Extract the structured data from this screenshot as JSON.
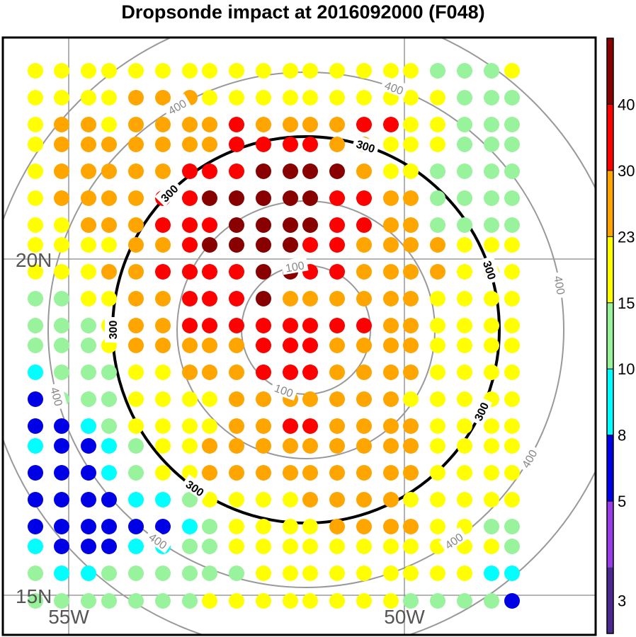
{
  "chart_data": {
    "type": "scatter",
    "title": "Dropsonde impact at 2016092000 (F048)",
    "x_axis": {
      "labels": [
        "55W",
        "50W"
      ],
      "values": [
        -55,
        -50
      ]
    },
    "y_axis": {
      "labels": [
        "20N",
        "15N"
      ],
      "values": [
        20,
        15
      ]
    },
    "grid": true,
    "colorbar": {
      "position": "right",
      "tick_labels": [
        "3",
        "5",
        "8",
        "10",
        "15",
        "23",
        "30",
        "40"
      ],
      "levels": [
        3,
        5,
        8,
        10,
        15,
        23,
        30,
        40
      ],
      "colors": [
        "#4b2a8f",
        "#9a3ce8",
        "#0000e6",
        "#00ffff",
        "#99f29c",
        "#ffff00",
        "#ffa500",
        "#ff0000",
        "#880000"
      ]
    },
    "contours": [
      {
        "value": 100,
        "label": "100",
        "color": "#999999",
        "highlight": false
      },
      {
        "value": 200,
        "label": "",
        "color": "#999999",
        "highlight": false
      },
      {
        "value": 300,
        "label": "300",
        "color": "#000000",
        "highlight": true
      },
      {
        "value": 400,
        "label": "400",
        "color": "#999999",
        "highlight": false
      },
      {
        "value": 500,
        "label": "",
        "color": "#999999",
        "highlight": false
      }
    ],
    "impact_classes": {
      "Y": 5,
      "O": 6,
      "R": 7,
      "D": 8,
      "G": 4,
      "C": 3,
      "B": 2
    },
    "dot_grid": [
      "YYYYYYYYYYYYYYYYGGGY",
      "YYYYOOOYYYYYYYYYYGGG",
      "YOOYOOOOROOOORRYYGGG",
      "YOOOOOOORRRROOYYYGGG",
      "YOOOOORRRDDDDOYYGGGG",
      "YOOOORRDDDDDRROOGGGG",
      "YYOOORRRDDDDRROOGGGG",
      "YYYYOORDDDDRROOOOYYY",
      "YYYOORRRRDDRROOOOYYY",
      "GGYYOORRRDOOOOOOYYYY",
      "GGGYOORRRRRRRROOYYYY",
      "GGGYOOOOORRROOOOYYYY",
      "CGGGYYOOORRROOOOYYYY",
      "BGGGYYYYOOOOOOOYYYYY",
      "BBCGYYYYOORROOOOYYYY",
      "CBBCGYYOOOOOOOOOYYYY",
      "BBBCGYYOOOOOOOOOYYYY",
      "BBBBCCGYYYYOOOOYYYYY",
      "BBBBBBCGYYYYOOOOYYGG",
      "CBBBCCGGYYYYYYYYYYYG",
      "GCCGGGGGGYYYYYYYYYCC",
      "GGGGGGGYYYYYYYYGGGGB"
    ]
  }
}
